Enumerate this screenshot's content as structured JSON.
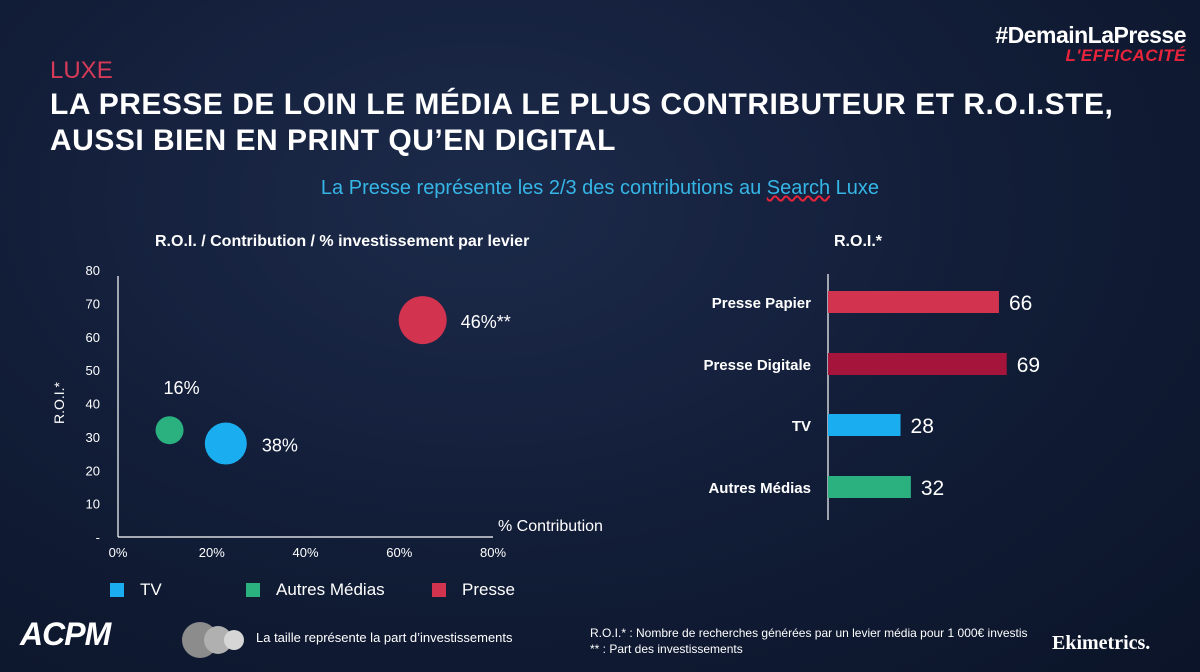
{
  "header": {
    "hashtag": "#DemainLaPresse",
    "tagline": "L'EFFICACITÉ",
    "section": "LUXE",
    "title_line1": "LA PRESSE DE LOIN LE MÉDIA LE PLUS CONTRIBUTEUR ET R.O.I.STE,",
    "title_line2": "AUSSI BIEN EN PRINT QU’EN DIGITAL",
    "subtitle_pre": "La Presse représente les 2/3 des contributions au ",
    "subtitle_search": "Search",
    "subtitle_post": " Luxe"
  },
  "colors": {
    "tv": "#1aaef0",
    "autres": "#2bb07f",
    "presse": "#d2334f",
    "presse_papier": "#d2334f",
    "presse_digitale": "#a5143a"
  },
  "chart_data": [
    {
      "type": "scatter",
      "title": "R.O.I. / Contribution / % investissement par levier",
      "xlabel": "% Contribution",
      "ylabel": "R.O.I.*",
      "xlim": [
        0,
        80
      ],
      "ylim": [
        0,
        80
      ],
      "x_ticks": [
        "0%",
        "20%",
        "40%",
        "60%",
        "80%"
      ],
      "y_ticks": [
        "-",
        "10",
        "20",
        "30",
        "40",
        "50",
        "60",
        "70",
        "80"
      ],
      "series": [
        {
          "name": "TV",
          "x": 23,
          "y": 28,
          "label": "38%",
          "color_key": "tv"
        },
        {
          "name": "Autres Médias",
          "x": 11,
          "y": 32,
          "label": "16%",
          "color_key": "autres"
        },
        {
          "name": "Presse",
          "x": 65,
          "y": 65,
          "label": "46%**",
          "color_key": "presse"
        }
      ],
      "legend": [
        {
          "name": "TV",
          "color_key": "tv"
        },
        {
          "name": "Autres Médias",
          "color_key": "autres"
        },
        {
          "name": "Presse",
          "color_key": "presse"
        }
      ],
      "legend_placement": "bottom",
      "size_note": "La taille représente la part d’investissements"
    },
    {
      "type": "bar",
      "title": "R.O.I.*",
      "orientation": "horizontal",
      "categories": [
        "Presse Papier",
        "Presse Digitale",
        "TV",
        "Autres Médias"
      ],
      "values": [
        66,
        69,
        28,
        32
      ],
      "color_keys": [
        "presse_papier",
        "presse_digitale",
        "tv",
        "autres"
      ]
    }
  ],
  "footer": {
    "footnote1": "R.O.I.* : Nombre de recherches générées par un levier média pour 1 000€ investis",
    "footnote2": "**  : Part des investissements",
    "logo_left": "ACPM",
    "logo_right": "Ekimetrics."
  }
}
